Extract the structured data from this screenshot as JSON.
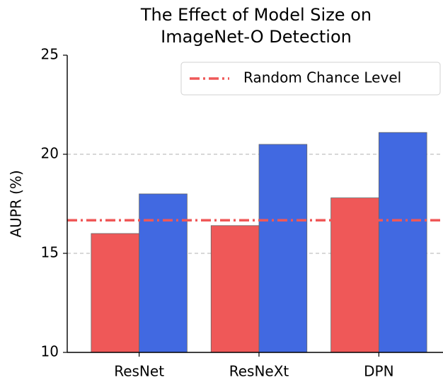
{
  "chart_data": {
    "type": "bar",
    "title": [
      "The Effect of Model Size on",
      "ImageNet-O Detection"
    ],
    "y_label": "AUPR (%)",
    "categories": [
      "ResNet",
      "ResNeXt",
      "DPN"
    ],
    "series": [
      {
        "color": "#ef5858",
        "values": [
          16.0,
          16.4,
          17.8
        ]
      },
      {
        "color": "#4169e1",
        "values": [
          18.0,
          20.5,
          21.1
        ]
      }
    ],
    "reference_line": {
      "name": "Random Chance Level",
      "value": 16.67,
      "color": "#ef5858"
    },
    "ylim": [
      10,
      25
    ],
    "yticks": [
      10,
      15,
      20,
      25
    ],
    "grid": true,
    "legend": "upper right"
  }
}
